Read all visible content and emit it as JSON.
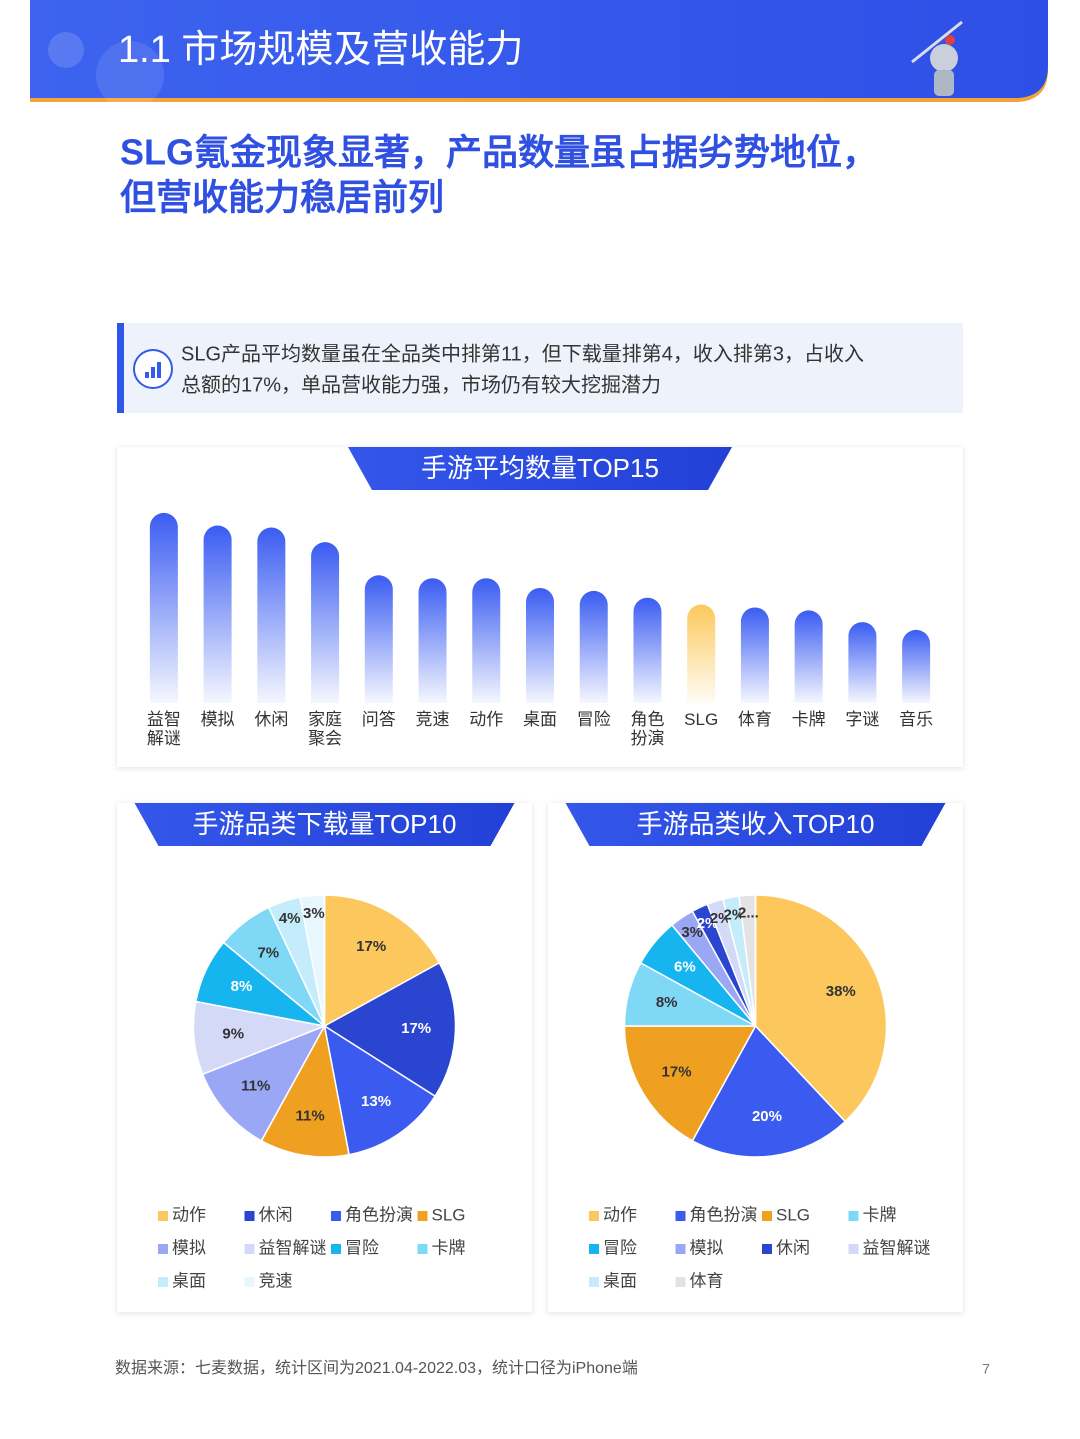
{
  "header": {
    "title": "1.1 市场规模及营收能力"
  },
  "subtitle": {
    "lines": [
      "SLG氪金现象显著，产品数量虽占据劣势地位，",
      "但营收能力稳居前列"
    ]
  },
  "callout": {
    "lines": [
      "SLG产品平均数量虽在全品类中排第11，但下载量排第4，收入排第3，占收入",
      "总额的17%，单品营收能力强，市场仍有较大挖掘潜力"
    ]
  },
  "chart_data": [
    {
      "type": "bar",
      "title": "手游平均数量TOP15",
      "categories": [
        "益智解谜",
        "模拟",
        "休闲",
        "家庭聚会",
        "问答",
        "竞速",
        "动作",
        "桌面",
        "冒险",
        "角色扮演",
        "SLG",
        "体育",
        "卡牌",
        "字谜",
        "音乐"
      ],
      "values": [
        195,
        182,
        180,
        165,
        131,
        128,
        128,
        118,
        115,
        108,
        101,
        98,
        95,
        83,
        75
      ],
      "colors": [
        "#3a5cf2",
        "#3a5cf2",
        "#3a5cf2",
        "#3a5cf2",
        "#3a5cf2",
        "#3a5cf2",
        "#3a5cf2",
        "#3a5cf2",
        "#3a5cf2",
        "#3a5cf2",
        "#fcc85a",
        "#3a5cf2",
        "#3a5cf2",
        "#3a5cf2",
        "#3a5cf2"
      ],
      "ylim": [
        0,
        200
      ]
    },
    {
      "type": "pie",
      "title": "手游品类下载量TOP10",
      "categories": [
        "动作",
        "休闲",
        "角色扮演",
        "SLG",
        "模拟",
        "益智解谜",
        "冒险",
        "卡牌",
        "桌面",
        "竞速"
      ],
      "values": [
        17,
        17,
        13,
        11,
        11,
        9,
        8,
        7,
        4,
        3
      ],
      "value_labels": [
        "17%",
        "17%",
        "13%",
        "11%",
        "11%",
        "9%",
        "8%",
        "7%",
        "4%",
        "3%"
      ],
      "colors": [
        "#fcc75c",
        "#2a45d0",
        "#3b5bf0",
        "#f0a020",
        "#9aa7f5",
        "#d5d9f8",
        "#16b5f0",
        "#7fd8f5",
        "#c5ecfa",
        "#e8f6fd"
      ]
    },
    {
      "type": "pie",
      "title": "手游品类收入TOP10",
      "categories": [
        "动作",
        "角色扮演",
        "SLG",
        "卡牌",
        "冒险",
        "模拟",
        "休闲",
        "益智解谜",
        "桌面",
        "体育"
      ],
      "values": [
        38,
        20,
        17,
        8,
        6,
        3,
        2,
        2,
        2,
        2
      ],
      "value_labels": [
        "38%",
        "20%",
        "17%",
        "8%",
        "6%",
        "3%",
        "2%",
        "2%",
        "2%",
        "2..."
      ],
      "colors": [
        "#fcc75c",
        "#3b5bf0",
        "#f0a020",
        "#7fd8f5",
        "#16b5f0",
        "#9aa7f5",
        "#2a45d0",
        "#d5d9f8",
        "#c5ecfa",
        "#e3e3e3"
      ]
    }
  ],
  "footer": {
    "source": "数据来源：七麦数据，统计区间为2021.04-2022.03，统计口径为iPhone端",
    "page": "7"
  }
}
